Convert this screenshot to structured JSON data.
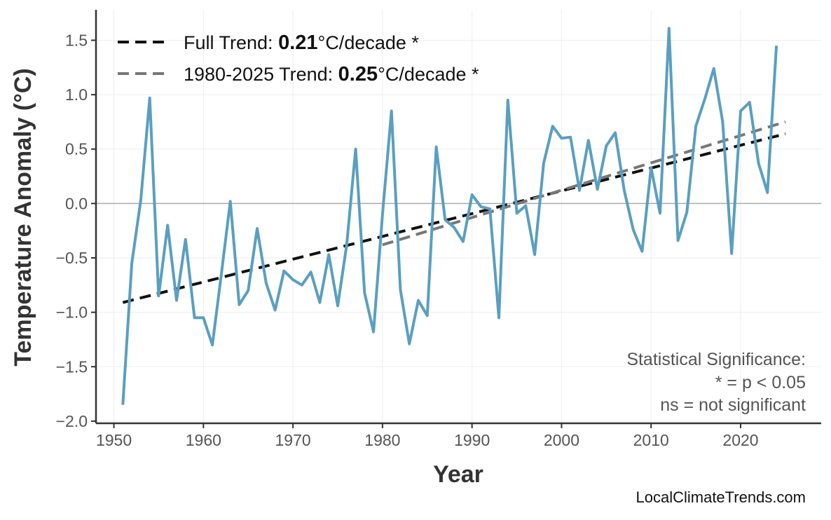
{
  "chart_data": {
    "type": "line",
    "xlabel": "Year",
    "ylabel": "Temperature Anomaly (°C)",
    "xlim": [
      1948,
      2029
    ],
    "ylim": [
      -2.02,
      1.78
    ],
    "xticks": [
      1950,
      1960,
      1970,
      1980,
      1990,
      2000,
      2010,
      2020
    ],
    "yticks": [
      -2.0,
      -1.5,
      -1.0,
      -0.5,
      0.0,
      0.5,
      1.0,
      1.5
    ],
    "ytick_labels": [
      "−2.0",
      "−1.5",
      "−1.0",
      "−0.5",
      "0.0",
      "0.5",
      "1.0",
      "1.5"
    ],
    "grid": true,
    "zero_line": true,
    "series_color": "#5a9fc0",
    "x": [
      1951,
      1952,
      1953,
      1954,
      1955,
      1956,
      1957,
      1958,
      1959,
      1960,
      1961,
      1962,
      1963,
      1964,
      1965,
      1966,
      1967,
      1968,
      1969,
      1970,
      1971,
      1972,
      1973,
      1974,
      1975,
      1976,
      1977,
      1978,
      1979,
      1980,
      1981,
      1982,
      1983,
      1984,
      1985,
      1986,
      1987,
      1988,
      1989,
      1990,
      1991,
      1992,
      1993,
      1994,
      1995,
      1996,
      1997,
      1998,
      1999,
      2000,
      2001,
      2002,
      2003,
      2004,
      2005,
      2006,
      2007,
      2008,
      2009,
      2010,
      2011,
      2012,
      2013,
      2014,
      2015,
      2016,
      2017,
      2018,
      2019,
      2020,
      2021,
      2022,
      2023,
      2024
    ],
    "values": [
      -1.85,
      -0.55,
      0.03,
      0.97,
      -0.85,
      -0.2,
      -0.89,
      -0.33,
      -1.05,
      -1.05,
      -1.3,
      -0.65,
      0.02,
      -0.93,
      -0.8,
      -0.23,
      -0.73,
      -0.98,
      -0.62,
      -0.7,
      -0.75,
      -0.63,
      -0.91,
      -0.47,
      -0.94,
      -0.38,
      0.5,
      -0.82,
      -1.18,
      -0.1,
      0.85,
      -0.79,
      -1.29,
      -0.89,
      -1.03,
      0.52,
      -0.15,
      -0.22,
      -0.35,
      0.08,
      -0.03,
      -0.05,
      -1.05,
      0.95,
      -0.09,
      -0.02,
      -0.47,
      0.37,
      0.71,
      0.6,
      0.61,
      0.12,
      0.58,
      0.13,
      0.53,
      0.65,
      0.12,
      -0.24,
      -0.44,
      0.33,
      -0.09,
      1.61,
      -0.34,
      -0.08,
      0.71,
      0.96,
      1.24,
      0.75,
      -0.46,
      0.85,
      0.93,
      0.37,
      0.1,
      1.45
    ],
    "trends": [
      {
        "label_prefix": "Full Trend: ",
        "value": "0.21",
        "label_suffix": "°C/decade *",
        "color": "#111111",
        "x": [
          1951,
          2025
        ],
        "y": [
          -0.91,
          0.64
        ]
      },
      {
        "label_prefix": "1980-2025 Trend: ",
        "value": "0.25",
        "label_suffix": "°C/decade *",
        "color": "#777777",
        "x": [
          1980,
          2025
        ],
        "y": [
          -0.38,
          0.75
        ]
      }
    ],
    "legend_position": "top-left",
    "annotation": [
      "Statistical Significance:",
      "* = p < 0.05",
      "ns = not significant"
    ],
    "credit": "LocalClimateTrends.com"
  }
}
